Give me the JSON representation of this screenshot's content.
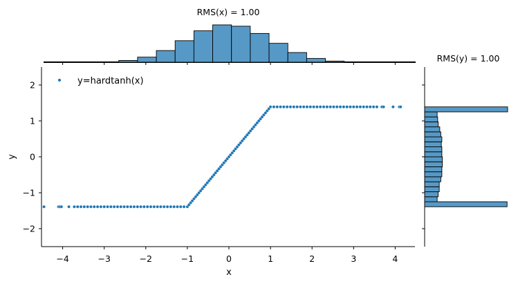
{
  "chart_data": [
    {
      "type": "scatter",
      "xlabel": "x",
      "ylabel": "y",
      "xlim": [
        -4.5,
        4.5
      ],
      "ylim": [
        -2.5,
        2.5
      ],
      "xticks": [
        -4,
        -3,
        -2,
        -1,
        0,
        1,
        2,
        3,
        4
      ],
      "xtick_labels": [
        "−4",
        "−3",
        "−2",
        "−1",
        "0",
        "1",
        "2",
        "3",
        "4"
      ],
      "yticks": [
        2,
        1,
        0,
        -1,
        -2
      ],
      "ytick_labels": [
        "2",
        "1",
        "0",
        "−1",
        "−2"
      ],
      "grid": false,
      "legend": {
        "placement": "top-left",
        "entries": [
          "y=hardtanh(x)"
        ]
      },
      "series": [
        {
          "name": "y=hardtanh(x)",
          "color": "#1f77b4",
          "function": "y = 1.39 * clip(x, -1, 1)",
          "plateau": 1.39,
          "x": [
            -4.45,
            -4.1,
            -4.07,
            -4.03,
            -3.85,
            -3.72,
            -3.64,
            -3.56,
            -3.48,
            -3.4,
            -3.32,
            -3.24,
            -3.16,
            -3.08,
            -3.0,
            -2.92,
            -2.84,
            -2.76,
            -2.68,
            -2.6,
            -2.52,
            -2.44,
            -2.36,
            -2.28,
            -2.2,
            -2.12,
            -2.04,
            -1.96,
            -1.88,
            -1.8,
            -1.72,
            -1.64,
            -1.56,
            -1.48,
            -1.4,
            -1.32,
            -1.24,
            -1.16,
            -1.08,
            -1.0,
            -0.96,
            -0.92,
            -0.88,
            -0.84,
            -0.8,
            -0.76,
            -0.72,
            -0.68,
            -0.64,
            -0.6,
            -0.56,
            -0.52,
            -0.48,
            -0.44,
            -0.4,
            -0.36,
            -0.32,
            -0.28,
            -0.24,
            -0.2,
            -0.16,
            -0.12,
            -0.08,
            -0.04,
            0.0,
            0.04,
            0.08,
            0.12,
            0.16,
            0.2,
            0.24,
            0.28,
            0.32,
            0.36,
            0.4,
            0.44,
            0.48,
            0.52,
            0.56,
            0.6,
            0.64,
            0.68,
            0.72,
            0.76,
            0.8,
            0.84,
            0.88,
            0.92,
            0.96,
            1.0,
            1.08,
            1.16,
            1.24,
            1.32,
            1.4,
            1.48,
            1.56,
            1.64,
            1.72,
            1.8,
            1.88,
            1.96,
            2.04,
            2.12,
            2.2,
            2.28,
            2.36,
            2.44,
            2.52,
            2.6,
            2.68,
            2.76,
            2.84,
            2.92,
            3.0,
            3.08,
            3.16,
            3.24,
            3.32,
            3.4,
            3.48,
            3.56,
            3.68,
            3.72,
            3.95,
            4.1,
            4.13
          ]
        }
      ]
    },
    {
      "type": "histogram",
      "orientation": "vertical",
      "title": "RMS(x) = 1.00",
      "variable": "x",
      "bin_start": -2.65,
      "bin_width": 0.452,
      "counts": [
        8,
        23,
        53,
        98,
        143,
        170,
        164,
        131,
        86,
        44,
        17,
        5
      ],
      "color": "#5799c6"
    },
    {
      "type": "histogram",
      "orientation": "horizontal",
      "title": "RMS(y) = 1.00",
      "variable": "y",
      "bin_start": -1.39,
      "bin_width": 0.139,
      "counts": [
        158,
        24,
        26,
        28,
        28,
        31,
        33,
        33,
        34,
        34,
        33,
        33,
        32,
        33,
        31,
        29,
        26,
        25,
        24,
        159
      ],
      "color": "#5799c6"
    }
  ]
}
